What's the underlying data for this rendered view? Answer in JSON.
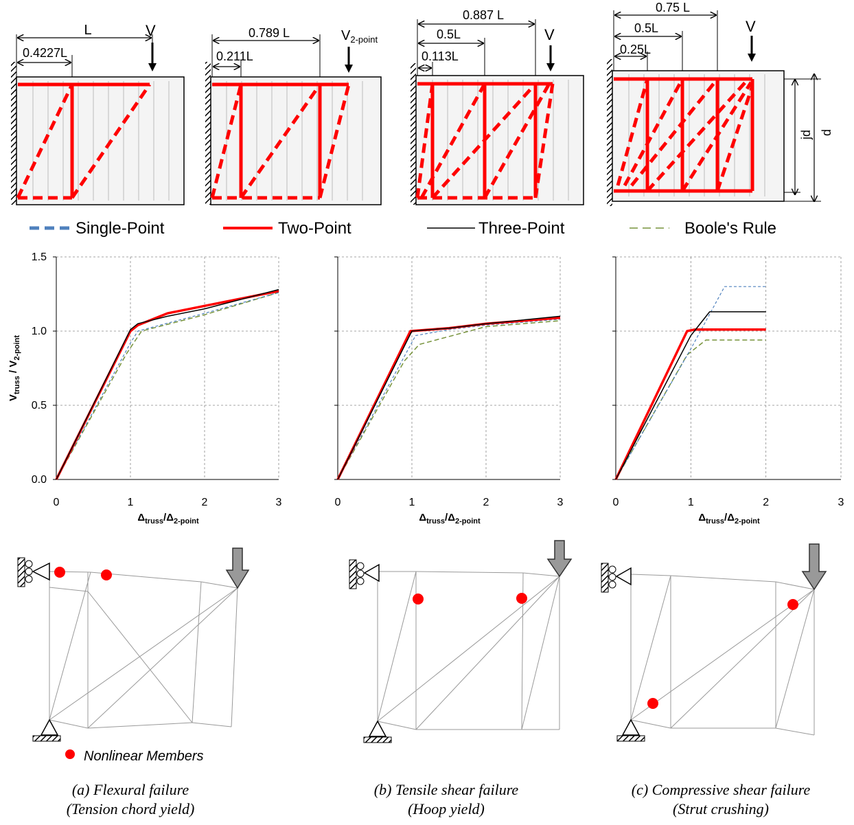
{
  "beams": [
    {
      "dims": [
        "L",
        "0.4227L"
      ],
      "load": "V",
      "load_sub": ""
    },
    {
      "dims": [
        "0.789 L",
        "0.211L"
      ],
      "load": "V",
      "load_sub": "2-point"
    },
    {
      "dims": [
        "0.887 L",
        "0.5L",
        "0.113L"
      ],
      "load": "V",
      "load_sub": ""
    },
    {
      "dims": [
        "0.75 L",
        "0.5L",
        "0.25L"
      ],
      "load": "V",
      "load_sub": "",
      "side_labels": [
        "jd",
        "d"
      ]
    }
  ],
  "legend": [
    {
      "label": "Single-Point",
      "color": "#4f81bd",
      "style": "thick-dash"
    },
    {
      "label": "Two-Point",
      "color": "#ff0000",
      "style": "thick-solid"
    },
    {
      "label": "Three-Point",
      "color": "#000000",
      "style": "thin-solid"
    },
    {
      "label": "Boole's Rule",
      "color": "#77933c",
      "style": "thin-dash"
    }
  ],
  "axis_text": {
    "ylabel_main": "V",
    "ylabel_sub1": "truss",
    "ylabel_mid": " / V",
    "ylabel_sub2": "2-point",
    "xlabel_main": "Δ",
    "xlabel_sub1": "truss",
    "xlabel_mid": "/Δ",
    "xlabel_sub2": "2-point"
  },
  "chart_data": [
    {
      "type": "line",
      "xlim": [
        0,
        3
      ],
      "ylim": [
        0,
        1.5
      ],
      "xticks": [
        "0",
        "1",
        "2",
        "3"
      ],
      "yticks": [
        "0.0",
        "0.5",
        "1.0",
        "1.5"
      ],
      "grid": true,
      "series": [
        {
          "name": "Single-Point",
          "color": "#4f81bd",
          "x": [
            0,
            1.0,
            1.1,
            2,
            3
          ],
          "y": [
            0,
            0.92,
            1.0,
            1.12,
            1.26
          ]
        },
        {
          "name": "Two-Point",
          "color": "#ff0000",
          "x": [
            0,
            1.0,
            1.1,
            1.5,
            2,
            3
          ],
          "y": [
            0,
            1.0,
            1.04,
            1.12,
            1.17,
            1.27
          ]
        },
        {
          "name": "Three-Point",
          "color": "#000000",
          "x": [
            0,
            1.0,
            1.1,
            1.5,
            2,
            3
          ],
          "y": [
            0,
            1.01,
            1.05,
            1.1,
            1.15,
            1.28
          ]
        },
        {
          "name": "Boole's Rule",
          "color": "#77933c",
          "x": [
            0,
            0.95,
            1.15,
            2,
            3
          ],
          "y": [
            0,
            0.85,
            1.0,
            1.11,
            1.26
          ]
        }
      ]
    },
    {
      "type": "line",
      "xlim": [
        0,
        3
      ],
      "ylim": [
        0,
        1.5
      ],
      "xticks": [
        "0",
        "1",
        "2",
        "3"
      ],
      "yticks": [],
      "grid": true,
      "series": [
        {
          "name": "Single-Point",
          "color": "#4f81bd",
          "x": [
            0,
            1.05,
            1.5,
            2,
            3
          ],
          "y": [
            0,
            0.97,
            1.01,
            1.04,
            1.08
          ]
        },
        {
          "name": "Two-Point",
          "color": "#ff0000",
          "x": [
            0,
            0.98,
            1.5,
            2,
            3
          ],
          "y": [
            0,
            1.0,
            1.02,
            1.05,
            1.09
          ]
        },
        {
          "name": "Three-Point",
          "color": "#000000",
          "x": [
            0,
            1.0,
            1.5,
            2,
            3
          ],
          "y": [
            0,
            1.0,
            1.02,
            1.05,
            1.1
          ]
        },
        {
          "name": "Boole's Rule",
          "color": "#77933c",
          "x": [
            0,
            0.9,
            1.1,
            2,
            3
          ],
          "y": [
            0,
            0.8,
            0.91,
            1.03,
            1.07
          ]
        }
      ]
    },
    {
      "type": "line",
      "xlim": [
        0,
        3
      ],
      "ylim": [
        0,
        1.5
      ],
      "xticks": [
        "0",
        "1",
        "2",
        "3"
      ],
      "yticks": [],
      "grid": true,
      "series": [
        {
          "name": "Single-Point",
          "color": "#4f81bd",
          "x": [
            0,
            1.0,
            1.45,
            2
          ],
          "y": [
            0,
            0.88,
            1.3,
            1.3
          ]
        },
        {
          "name": "Two-Point",
          "color": "#ff0000",
          "x": [
            0,
            0.95,
            1.05,
            2
          ],
          "y": [
            0,
            1.0,
            1.01,
            1.01
          ]
        },
        {
          "name": "Three-Point",
          "color": "#000000",
          "x": [
            0,
            1.0,
            1.25,
            2
          ],
          "y": [
            0,
            0.97,
            1.13,
            1.13
          ]
        },
        {
          "name": "Boole's Rule",
          "color": "#77933c",
          "x": [
            0,
            0.95,
            1.2,
            2
          ],
          "y": [
            0,
            0.84,
            0.94,
            0.94
          ]
        }
      ]
    }
  ],
  "nonlinear_label": "Nonlinear Members",
  "captions": [
    [
      "(a) Flexural failure",
      "(Tension chord yield)"
    ],
    [
      "(b) Tensile shear failure",
      "(Hoop yield)"
    ],
    [
      "(c) Compressive shear failure",
      "(Strut crushing)"
    ]
  ]
}
